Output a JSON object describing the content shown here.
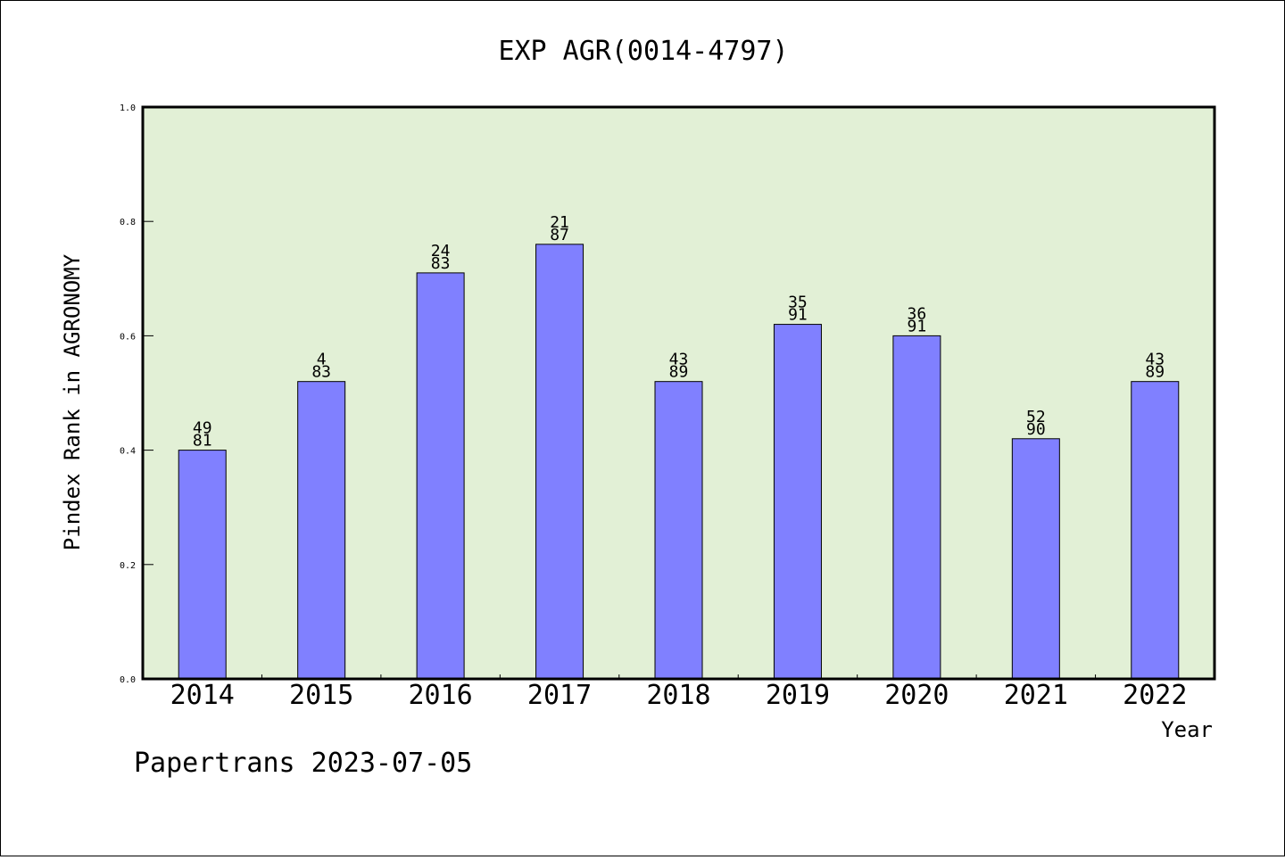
{
  "chart_data": {
    "type": "bar",
    "title": "EXP AGR(0014-4797)",
    "xlabel": "Year",
    "ylabel": "Pindex Rank in AGRONOMY",
    "ylim": [
      0,
      1.0
    ],
    "yticks": [
      "0.0",
      "0.2",
      "0.4",
      "0.6",
      "0.8",
      "1.0"
    ],
    "categories": [
      "2014",
      "2015",
      "2016",
      "2017",
      "2018",
      "2019",
      "2020",
      "2021",
      "2022"
    ],
    "values": [
      0.4,
      0.52,
      0.71,
      0.76,
      0.52,
      0.62,
      0.6,
      0.42,
      0.52
    ],
    "labels_top": [
      "49",
      "4",
      "24",
      "21",
      "43",
      "35",
      "36",
      "52",
      "43"
    ],
    "labels_bottom": [
      "81",
      "83",
      "83",
      "87",
      "89",
      "91",
      "91",
      "90",
      "89"
    ],
    "grid": false,
    "colors": {
      "bar": "#8080ff",
      "plot_background": "#e2f0d6"
    }
  },
  "footer": "Papertrans 2023-07-05"
}
